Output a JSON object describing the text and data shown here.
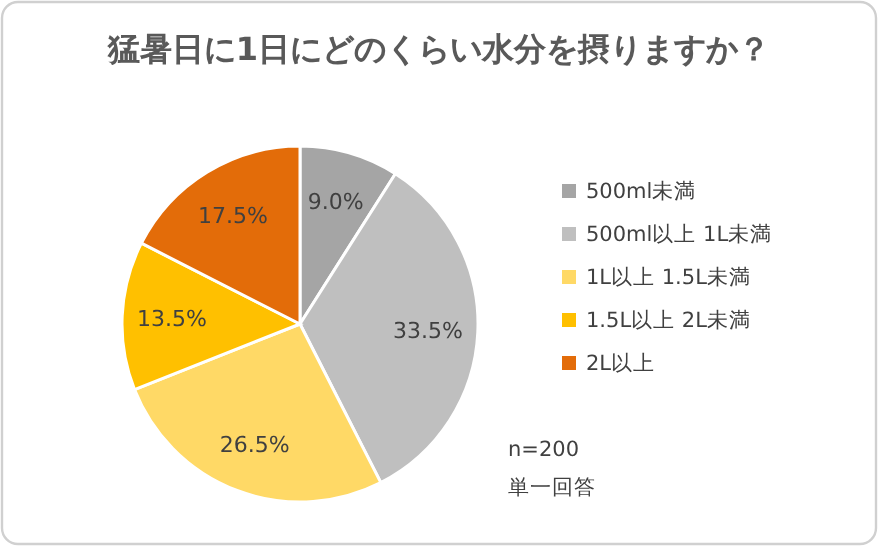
{
  "chart_data": {
    "type": "pie",
    "title": "猛暑日に1日にどのくらい水分を摂りますか？",
    "categories": [
      "500ml未満",
      "500ml以上 1L未満",
      "1L以上 1.5L未満",
      "1.5L以上 2L未満",
      "2L以上"
    ],
    "values": [
      9.0,
      33.5,
      26.5,
      13.5,
      17.5
    ],
    "value_labels": [
      "9.0%",
      "33.5%",
      "26.5%",
      "13.5%",
      "17.5%"
    ],
    "colors": [
      "#a5a5a5",
      "#bfbfbf",
      "#ffd966",
      "#ffc000",
      "#e36c09"
    ],
    "legend": "right",
    "annotations": [
      "n=200",
      "単一回答"
    ]
  }
}
